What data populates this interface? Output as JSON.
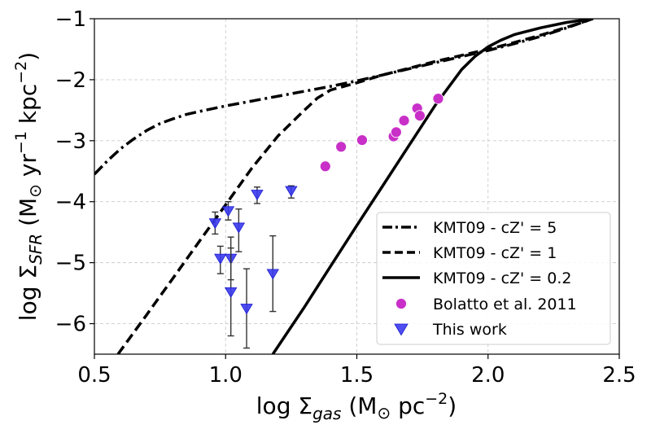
{
  "chart_data": {
    "type": "scatter",
    "xlabel": "log Σgas (M⊙ pc−2)",
    "ylabel": "log ΣSFR (M⊙ yr−1 kpc−2)",
    "xlim": [
      0.5,
      2.5
    ],
    "ylim": [
      -6.5,
      -1.0
    ],
    "grid": true,
    "legend_position": "lower-right",
    "x_ticks": [
      0.5,
      1.0,
      1.5,
      2.0,
      2.5
    ],
    "x_tick_labels": [
      "0.5",
      "1.0",
      "1.5",
      "2.0",
      "2.5"
    ],
    "y_ticks": [
      -6,
      -5,
      -4,
      -3,
      -2,
      -1
    ],
    "y_tick_labels": [
      "−6",
      "−5",
      "−4",
      "−3",
      "−2",
      "−1"
    ],
    "series": [
      {
        "name": "KMT09 - cZ' = 5",
        "kind": "line",
        "style": "dashdot",
        "color": "#000000",
        "x": [
          0.5,
          0.55,
          0.6,
          0.65,
          0.7,
          0.75,
          0.8,
          0.85,
          0.9,
          1.0,
          1.1,
          1.2,
          1.3,
          1.4,
          1.5,
          1.6,
          1.7,
          1.8,
          1.9,
          2.0,
          2.1,
          2.2,
          2.3,
          2.4
        ],
        "y": [
          -3.55,
          -3.33,
          -3.13,
          -2.97,
          -2.83,
          -2.72,
          -2.64,
          -2.57,
          -2.52,
          -2.43,
          -2.35,
          -2.27,
          -2.19,
          -2.11,
          -2.02,
          -1.92,
          -1.82,
          -1.72,
          -1.62,
          -1.52,
          -1.41,
          -1.29,
          -1.15,
          -1.0
        ]
      },
      {
        "name": "KMT09 - cZ' = 1",
        "kind": "line",
        "style": "dashed",
        "color": "#000000",
        "x": [
          0.59,
          0.7,
          0.8,
          0.9,
          1.0,
          1.1,
          1.2,
          1.3,
          1.35,
          1.4,
          1.5,
          1.6,
          1.7,
          1.8,
          1.9,
          2.0,
          2.1,
          2.2,
          2.3,
          2.4
        ],
        "y": [
          -6.5,
          -5.85,
          -5.25,
          -4.65,
          -4.05,
          -3.45,
          -2.92,
          -2.5,
          -2.3,
          -2.17,
          -2.05,
          -1.92,
          -1.81,
          -1.7,
          -1.6,
          -1.5,
          -1.39,
          -1.27,
          -1.14,
          -1.0
        ]
      },
      {
        "name": "KMT09 - cZ' = 0.2",
        "kind": "line",
        "style": "solid",
        "color": "#000000",
        "x": [
          1.18,
          1.3,
          1.4,
          1.5,
          1.6,
          1.7,
          1.8,
          1.9,
          1.95,
          2.0,
          2.05,
          2.1,
          2.2,
          2.3,
          2.4
        ],
        "y": [
          -6.5,
          -5.73,
          -5.06,
          -4.39,
          -3.73,
          -3.07,
          -2.41,
          -1.83,
          -1.62,
          -1.46,
          -1.35,
          -1.26,
          -1.15,
          -1.06,
          -1.0
        ]
      },
      {
        "name": "Bolatto et al. 2011",
        "kind": "scatter",
        "marker": "circle",
        "color": "#c830c8",
        "x": [
          1.38,
          1.44,
          1.52,
          1.64,
          1.65,
          1.68,
          1.73,
          1.74,
          1.81
        ],
        "y": [
          -3.42,
          -3.1,
          -2.99,
          -2.93,
          -2.86,
          -2.67,
          -2.47,
          -2.59,
          -2.31
        ]
      },
      {
        "name": "This work",
        "kind": "scatter",
        "marker": "triangle-down",
        "color": "#3a3aee",
        "x": [
          0.96,
          0.98,
          1.01,
          1.02,
          1.02,
          1.05,
          1.08,
          1.12,
          1.18,
          1.25
        ],
        "y": [
          -4.35,
          -4.93,
          -4.15,
          -4.93,
          -5.48,
          -4.42,
          -5.75,
          -3.88,
          -5.18,
          -3.82
        ],
        "err_low": [
          0.18,
          0.25,
          0.15,
          0.35,
          0.72,
          0.4,
          0.65,
          0.15,
          0.62,
          0.12
        ],
        "err_high": [
          0.18,
          0.2,
          0.15,
          0.35,
          0.72,
          0.3,
          0.65,
          0.12,
          0.62,
          0.08
        ]
      }
    ]
  }
}
